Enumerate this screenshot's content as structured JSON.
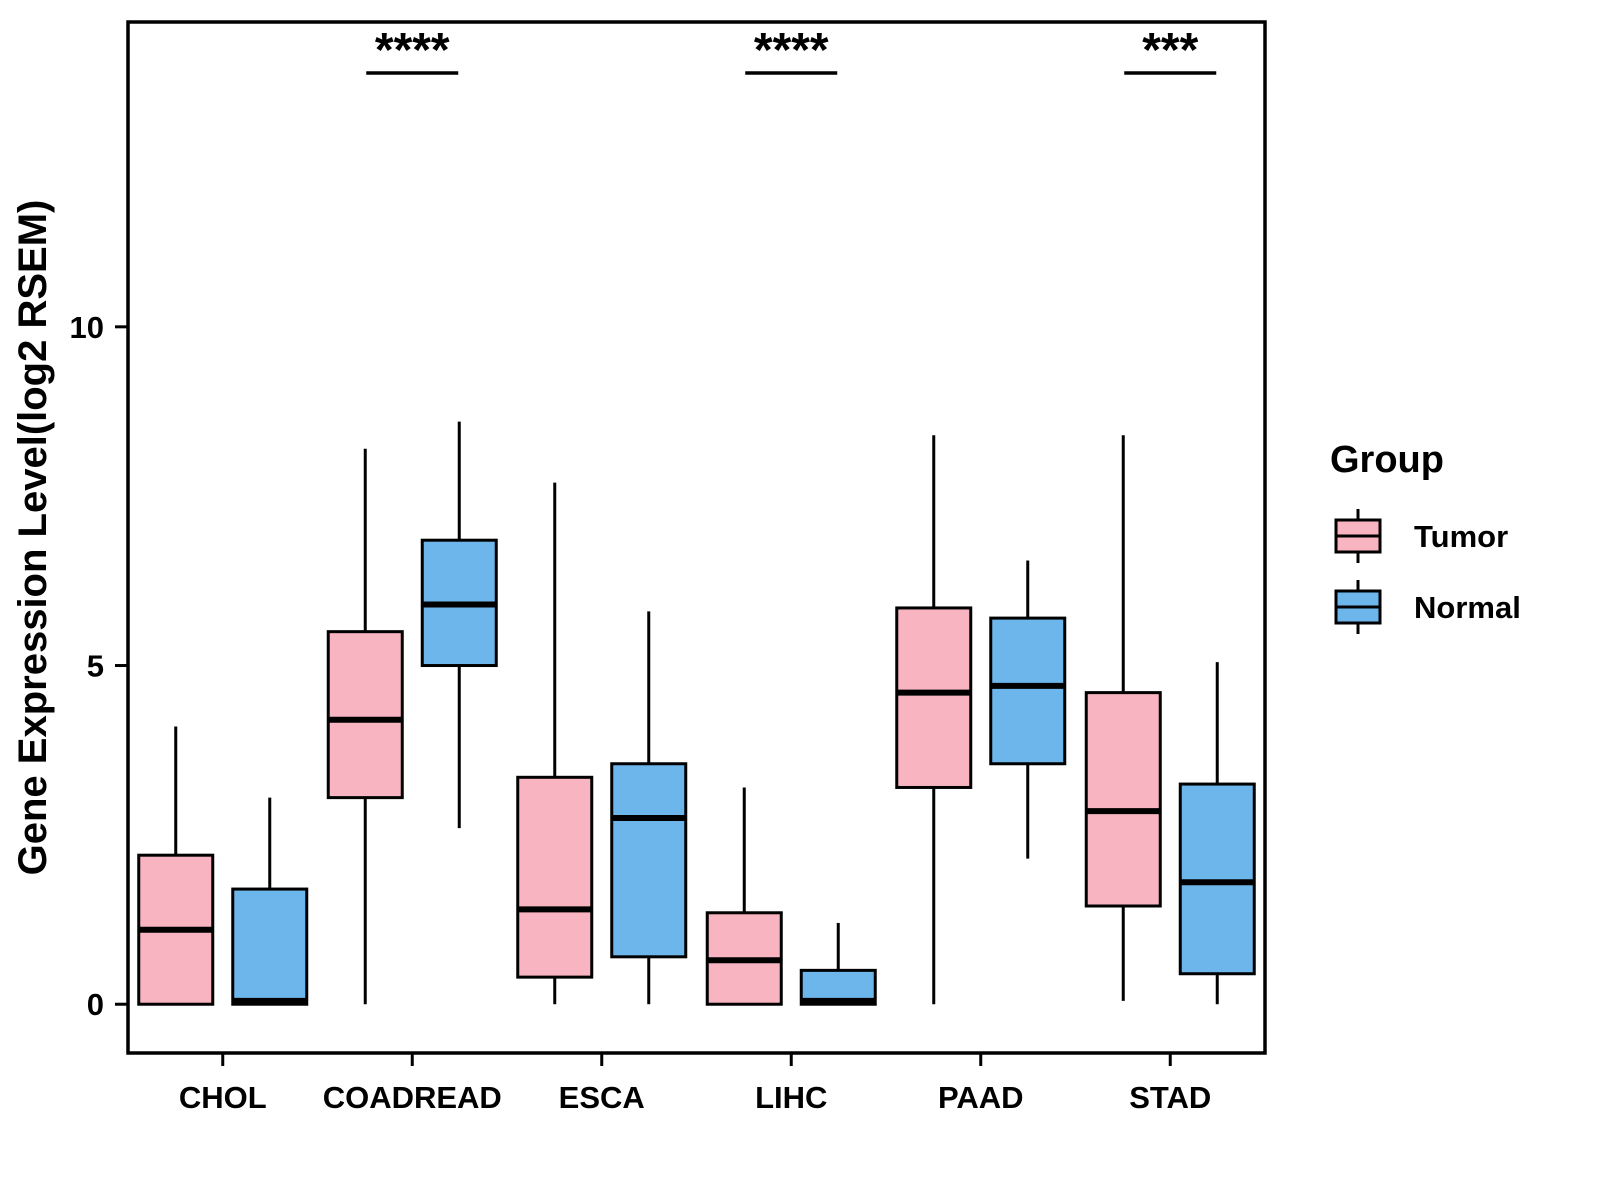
{
  "chart_data": {
    "type": "boxplot",
    "title": "",
    "xlabel": "",
    "ylabel": "Gene Expression Level(log2 RSEM)",
    "ylim": [
      -0.72,
      14.5
    ],
    "yticks": [
      0,
      5,
      10
    ],
    "grid": false,
    "categories": [
      "CHOL",
      "COADREAD",
      "ESCA",
      "LIHC",
      "PAAD",
      "STAD"
    ],
    "series": [
      {
        "name": "Tumor",
        "color": "#F9B4C1",
        "boxes": [
          {
            "min": 0,
            "q1": 0,
            "median": 1.1,
            "q3": 2.2,
            "max": 4.1
          },
          {
            "min": 0,
            "q1": 3.05,
            "median": 4.2,
            "q3": 5.5,
            "max": 8.2
          },
          {
            "min": 0,
            "q1": 0.4,
            "median": 1.4,
            "q3": 3.35,
            "max": 7.7
          },
          {
            "min": 0,
            "q1": 0,
            "median": 0.65,
            "q3": 1.35,
            "max": 3.2
          },
          {
            "min": 0,
            "q1": 3.2,
            "median": 4.6,
            "q3": 5.85,
            "max": 8.4
          },
          {
            "min": 0.05,
            "q1": 1.45,
            "median": 2.85,
            "q3": 4.6,
            "max": 8.4
          }
        ]
      },
      {
        "name": "Normal",
        "color": "#6DB6EC",
        "boxes": [
          {
            "min": 0,
            "q1": 0,
            "median": 0.05,
            "q3": 1.7,
            "max": 3.05
          },
          {
            "min": 2.6,
            "q1": 5.0,
            "median": 5.9,
            "q3": 6.85,
            "max": 8.6
          },
          {
            "min": 0,
            "q1": 0.7,
            "median": 2.75,
            "q3": 3.55,
            "max": 5.8
          },
          {
            "min": 0,
            "q1": 0,
            "median": 0.05,
            "q3": 0.5,
            "max": 1.2
          },
          {
            "min": 2.15,
            "q1": 3.55,
            "median": 4.7,
            "q3": 5.7,
            "max": 6.55
          },
          {
            "min": 0,
            "q1": 0.45,
            "median": 1.8,
            "q3": 3.25,
            "max": 5.05
          }
        ]
      }
    ],
    "significance": [
      {
        "category": "COADREAD",
        "label": "****"
      },
      {
        "category": "LIHC",
        "label": "****"
      },
      {
        "category": "STAD",
        "label": "***"
      }
    ],
    "legend": {
      "title": "Group",
      "position": "right",
      "entries": [
        "Tumor",
        "Normal"
      ]
    }
  }
}
